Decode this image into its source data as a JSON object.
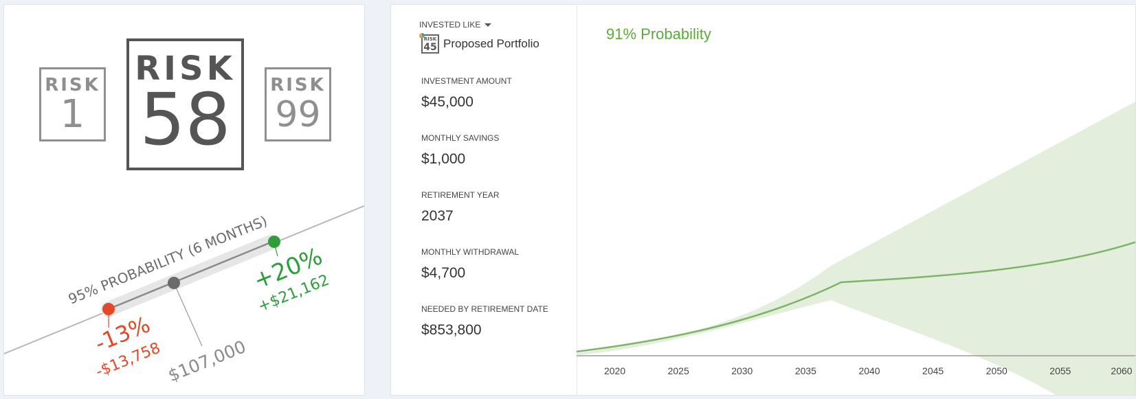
{
  "risk_panel": {
    "risk_label": "RISK",
    "min_score": "1",
    "current_score": "58",
    "max_score": "99",
    "probability_label": "95% PROBABILITY (6 MONTHS)",
    "downside_pct": "-13%",
    "downside_amount": "-$13,758",
    "current_value": "$107,000",
    "upside_pct": "+20%",
    "upside_amount": "+$21,162",
    "colors": {
      "downside": "#e5472a",
      "upside": "#2e9e3a",
      "neutral": "#6b6b6b"
    }
  },
  "projection_panel": {
    "invested_like_label": "INVESTED LIKE",
    "portfolio_badge_label": "RISK",
    "portfolio_badge_score": "45",
    "portfolio_name": "Proposed Portfolio",
    "fields": [
      {
        "label": "INVESTMENT AMOUNT",
        "value": "$45,000"
      },
      {
        "label": "MONTHLY SAVINGS",
        "value": "$1,000"
      },
      {
        "label": "RETIREMENT YEAR",
        "value": "2037"
      },
      {
        "label": "MONTHLY WITHDRAWAL",
        "value": "$4,700"
      },
      {
        "label": "NEEDED BY RETIREMENT DATE",
        "value": "$853,800"
      }
    ],
    "probability_title": "91% Probability",
    "colors": {
      "accent": "#5aab3a",
      "band": "#e3eedc",
      "line": "#7db466"
    }
  },
  "chart_data": {
    "type": "area",
    "x_ticks": [
      "2020",
      "2025",
      "2030",
      "2035",
      "2040",
      "2045",
      "2050",
      "2055",
      "2060"
    ],
    "xlim": [
      2017,
      2061
    ],
    "retirement_year": 2037,
    "grid": false,
    "legend": "none",
    "note": "median projection with shaded probability band; y-axis unlabeled"
  }
}
